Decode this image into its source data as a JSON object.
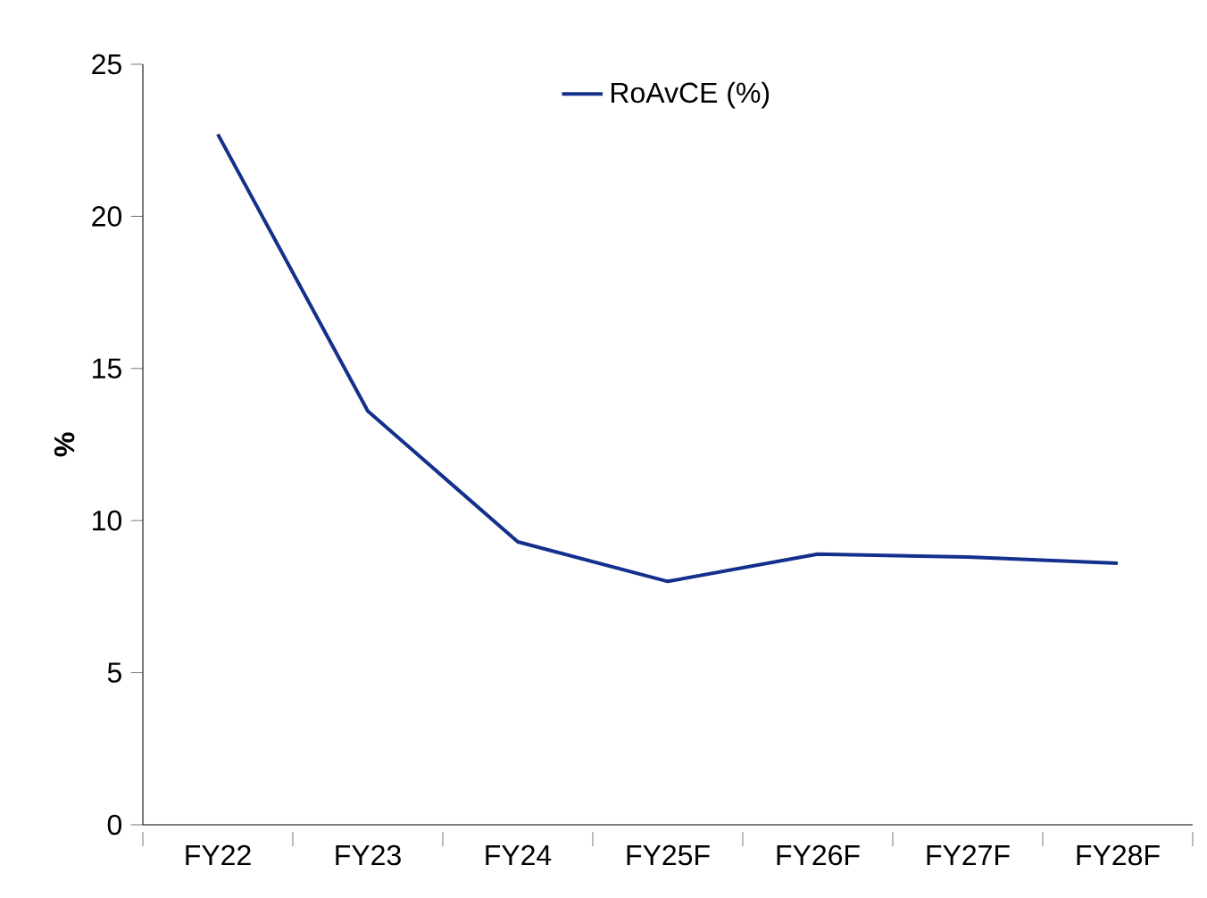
{
  "chart_data": {
    "type": "line",
    "ylabel": "%",
    "categories": [
      "FY22",
      "FY23",
      "FY24",
      "FY25F",
      "FY26F",
      "FY27F",
      "FY28F"
    ],
    "series": [
      {
        "name": "RoAvCE (%)",
        "color": "#13318c",
        "values": [
          22.7,
          13.6,
          9.3,
          8.0,
          8.9,
          8.8,
          8.6
        ]
      }
    ],
    "ylim": [
      0,
      25
    ],
    "yticks": [
      0,
      5,
      10,
      15,
      20,
      25
    ],
    "grid": false,
    "legend": "top",
    "marker": "none",
    "line_style": "solid"
  }
}
